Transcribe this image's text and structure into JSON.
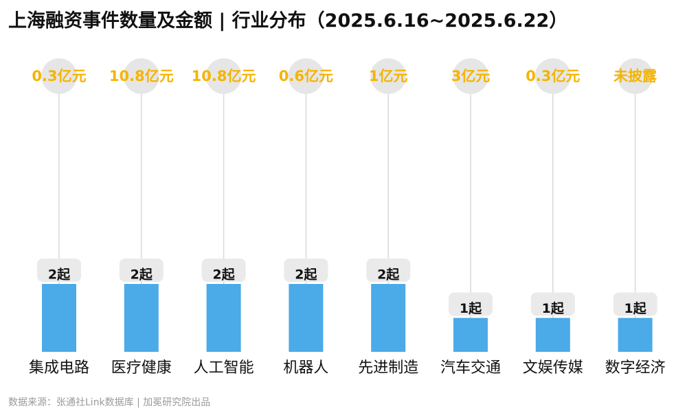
{
  "title": "上海融资事件数量及金额 | 行业分布（2025.6.16~2025.6.22）",
  "source": "数据来源：张通社Link数据库 | 加冕研究院出品",
  "colors": {
    "bar": "#4BAAE8",
    "amount_text": "#F5B400",
    "circle": "#E6E6E6",
    "stem": "#D9D9D9",
    "count_box": "#EAEAEA",
    "count_text": "#111111",
    "category_text": "#111111"
  },
  "chart_data": {
    "type": "bar",
    "categories": [
      "集成电路",
      "医疗健康",
      "人工智能",
      "机器人",
      "先进制造",
      "汽车交通",
      "文娱传媒",
      "数字经济"
    ],
    "series": [
      {
        "name": "",
        "values": [
          2,
          2,
          2,
          2,
          2,
          1,
          1,
          1
        ]
      }
    ],
    "count_labels": [
      "2起",
      "2起",
      "2起",
      "2起",
      "2起",
      "1起",
      "1起",
      "1起"
    ],
    "amount_labels": [
      "0.3亿元",
      "10.8亿元",
      "10.8亿元",
      "0.6亿元",
      "1亿元",
      "3亿元",
      "0.3亿元",
      "未披露"
    ],
    "ylim": [
      0,
      2
    ],
    "grid": false,
    "legend": "none",
    "xlabel": "",
    "ylabel": ""
  }
}
